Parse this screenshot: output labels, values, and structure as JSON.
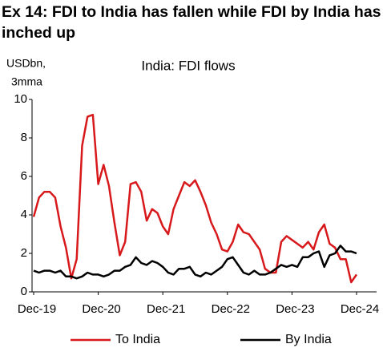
{
  "chart_data": {
    "type": "line",
    "title": "Ex 14: FDI to India has fallen while FDI by India has inched up",
    "subtitle": "India: FDI flows",
    "y_label": [
      "USDbn,",
      "3mma"
    ],
    "categories": [
      "Dec-19",
      null,
      null,
      null,
      null,
      null,
      null,
      null,
      null,
      null,
      null,
      null,
      "Dec-20",
      null,
      null,
      null,
      null,
      null,
      null,
      null,
      null,
      null,
      null,
      null,
      "Dec-21",
      null,
      null,
      null,
      null,
      null,
      null,
      null,
      null,
      null,
      null,
      null,
      "Dec-22",
      null,
      null,
      null,
      null,
      null,
      null,
      null,
      null,
      null,
      null,
      null,
      "Dec-23",
      null,
      null,
      null,
      null,
      null,
      null,
      null,
      null,
      null,
      null,
      null,
      "Dec-24"
    ],
    "series": [
      {
        "name": "To India",
        "color": "#d7191c",
        "values": [
          3.9,
          4.9,
          5.2,
          5.2,
          4.9,
          3.4,
          2.3,
          0.7,
          1.7,
          7.6,
          9.1,
          9.2,
          5.6,
          6.6,
          5.5,
          3.6,
          1.9,
          2.6,
          5.6,
          5.7,
          5.2,
          3.7,
          4.3,
          4.1,
          3.4,
          3.0,
          4.3,
          5.0,
          5.7,
          5.5,
          5.8,
          5.2,
          4.5,
          3.6,
          3.0,
          2.2,
          2.1,
          2.6,
          3.5,
          3.1,
          3.0,
          2.6,
          2.2,
          1.2,
          1.0,
          1.0,
          2.6,
          2.9,
          2.7,
          2.5,
          2.3,
          2.6,
          2.2,
          3.1,
          3.5,
          2.5,
          2.3,
          1.7,
          1.7,
          0.5,
          0.9
        ]
      },
      {
        "name": "By India",
        "color": "#000000",
        "values": [
          1.1,
          1.0,
          1.1,
          1.1,
          1.0,
          1.1,
          0.8,
          0.8,
          0.7,
          0.8,
          1.0,
          0.9,
          0.9,
          0.8,
          0.9,
          1.1,
          1.1,
          1.3,
          1.4,
          1.8,
          1.5,
          1.4,
          1.6,
          1.5,
          1.3,
          1.0,
          0.9,
          1.2,
          1.2,
          1.3,
          0.9,
          0.8,
          1.0,
          0.9,
          1.1,
          1.3,
          1.7,
          1.8,
          1.4,
          1.0,
          0.9,
          1.1,
          0.9,
          0.9,
          1.0,
          1.2,
          1.4,
          1.3,
          1.4,
          1.3,
          1.8,
          1.8,
          2.0,
          2.1,
          1.3,
          1.9,
          2.0,
          2.4,
          2.1,
          2.1,
          2.0
        ]
      }
    ],
    "ylim": [
      0,
      10
    ],
    "yticks": [
      0,
      2,
      4,
      6,
      8,
      10
    ],
    "grid": false,
    "legend": "bottom"
  }
}
